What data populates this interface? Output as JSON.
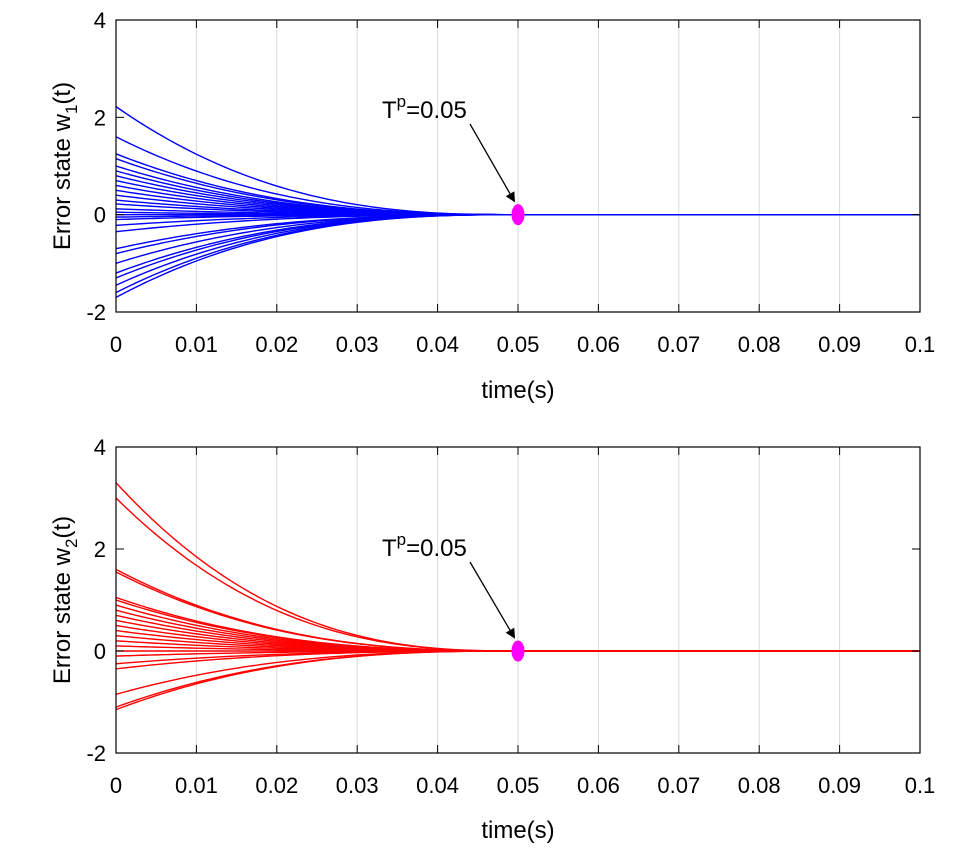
{
  "chart_data": [
    {
      "type": "line",
      "name": "top-panel",
      "xlabel": "time(s)",
      "ylabel": {
        "prefix": "Error state w",
        "sub": "1",
        "suffix": "(t)"
      },
      "xlim": [
        0,
        0.1
      ],
      "ylim": [
        -2,
        4
      ],
      "xticks": [
        0,
        0.01,
        0.02,
        0.03,
        0.04,
        0.05,
        0.06,
        0.07,
        0.08,
        0.09,
        0.1
      ],
      "xtick_labels": [
        "0",
        "0.01",
        "0.02",
        "0.03",
        "0.04",
        "0.05",
        "0.06",
        "0.07",
        "0.08",
        "0.09",
        "0.1"
      ],
      "yticks": [
        -2,
        0,
        2,
        4
      ],
      "ytick_labels": [
        "-2",
        "0",
        "2",
        "4"
      ],
      "grid": "vertical",
      "line_color": "#0000ff",
      "settling_time": 0.05,
      "decay_exponent": 2.6,
      "initial_values": [
        2.22,
        1.6,
        1.25,
        1.15,
        1.0,
        0.9,
        0.8,
        0.7,
        0.6,
        0.5,
        0.4,
        0.3,
        0.22,
        0.12,
        0.05,
        0.0,
        -0.05,
        -0.1,
        -0.22,
        -0.35,
        -0.7,
        -0.8,
        -1.0,
        -1.2,
        -1.3,
        -1.45,
        -1.6,
        -1.7
      ],
      "marker": {
        "x": 0.05,
        "y": 0,
        "color": "#ff00ff"
      },
      "annotation": {
        "base": "T",
        "sup": "p",
        "rest": "=0.05",
        "x": 0.05,
        "y": 0
      }
    },
    {
      "type": "line",
      "name": "bottom-panel",
      "xlabel": "time(s)",
      "ylabel": {
        "prefix": "Error state w",
        "sub": "2",
        "suffix": "(t)"
      },
      "xlim": [
        0,
        0.1
      ],
      "ylim": [
        -2,
        4
      ],
      "xticks": [
        0,
        0.01,
        0.02,
        0.03,
        0.04,
        0.05,
        0.06,
        0.07,
        0.08,
        0.09,
        0.1
      ],
      "xtick_labels": [
        "0",
        "0.01",
        "0.02",
        "0.03",
        "0.04",
        "0.05",
        "0.06",
        "0.07",
        "0.08",
        "0.09",
        "0.1"
      ],
      "yticks": [
        -2,
        0,
        2,
        4
      ],
      "ytick_labels": [
        "-2",
        "0",
        "2",
        "4"
      ],
      "grid": "vertical",
      "line_color": "#ff0000",
      "settling_time": 0.05,
      "decay_exponent": 2.6,
      "initial_values": [
        3.3,
        3.0,
        1.6,
        1.55,
        1.05,
        1.0,
        0.9,
        0.8,
        0.7,
        0.6,
        0.5,
        0.4,
        0.3,
        0.2,
        0.1,
        0.0,
        -0.1,
        -0.25,
        -0.35,
        -0.85,
        -1.1,
        -1.15
      ],
      "marker": {
        "x": 0.05,
        "y": 0,
        "color": "#ff00ff"
      },
      "annotation": {
        "base": "T",
        "sup": "p",
        "rest": "=0.05",
        "x": 0.05,
        "y": 0
      }
    }
  ]
}
